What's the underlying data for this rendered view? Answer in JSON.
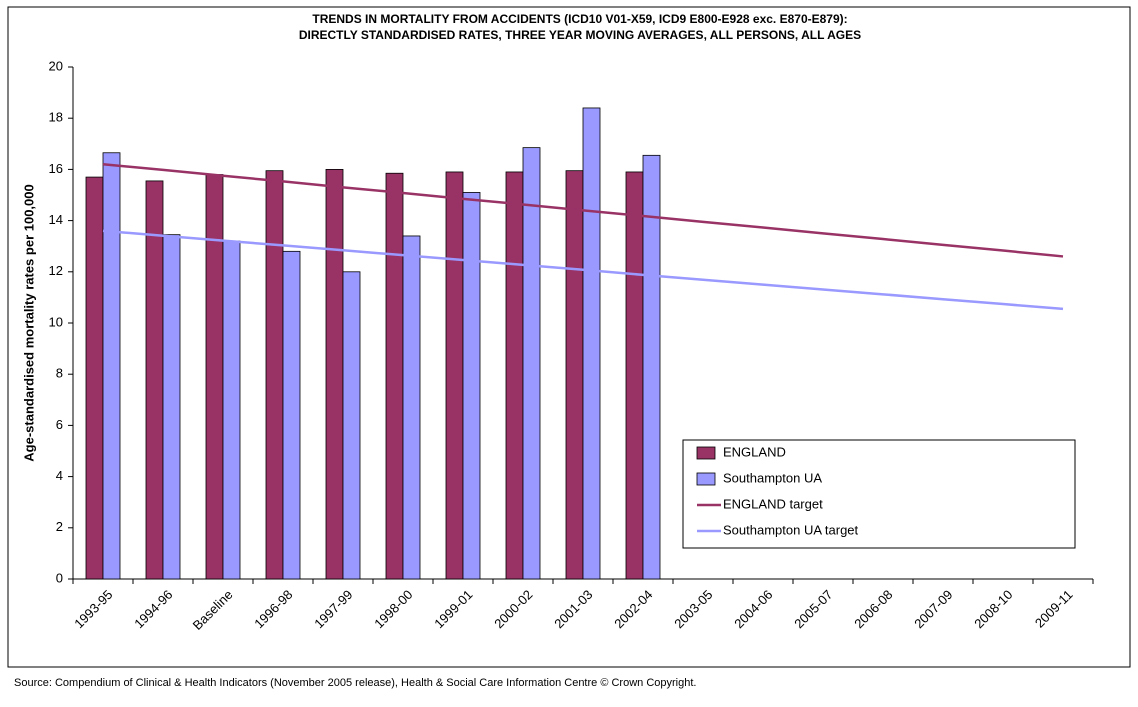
{
  "chart_data": {
    "type": "bar",
    "title": [
      "TRENDS IN MORTALITY FROM ACCIDENTS (ICD10 V01-X59, ICD9 E800-E928 exc. E870-E879):",
      "DIRECTLY STANDARDISED RATES, THREE YEAR MOVING AVERAGES, ALL PERSONS, ALL AGES"
    ],
    "y_label": "Age-standardised mortality rates per 100,000",
    "source": "Source: Compendium of Clinical & Health Indicators (November 2005 release), Health & Social Care Information Centre © Crown Copyright.",
    "categories": [
      "1993-95",
      "1994-96",
      "Baseline",
      "1996-98",
      "1997-99",
      "1998-00",
      "1999-01",
      "2000-02",
      "2001-03",
      "2002-04",
      "2003-05",
      "2004-06",
      "2005-07",
      "2006-08",
      "2007-09",
      "2008-10",
      "2009-11"
    ],
    "series": [
      {
        "name": "ENGLAND",
        "type": "bar",
        "color": "#993366",
        "values": [
          15.7,
          15.55,
          15.8,
          15.95,
          16.0,
          15.85,
          15.9,
          15.9,
          15.95,
          15.9,
          null,
          null,
          null,
          null,
          null,
          null,
          null
        ]
      },
      {
        "name": "Southampton UA",
        "type": "bar",
        "color": "#9999ff",
        "values": [
          16.65,
          13.45,
          13.2,
          12.8,
          12.0,
          13.4,
          15.1,
          16.85,
          18.4,
          16.55,
          null,
          null,
          null,
          null,
          null,
          null,
          null
        ]
      },
      {
        "name": "ENGLAND target",
        "type": "line",
        "color": "#993366",
        "values": [
          16.2,
          15.98,
          15.75,
          15.53,
          15.3,
          15.08,
          14.85,
          14.63,
          14.4,
          14.18,
          13.95,
          13.73,
          13.5,
          13.28,
          13.05,
          12.83,
          12.6
        ]
      },
      {
        "name": "Southampton UA target",
        "type": "line",
        "color": "#9999ff",
        "values": [
          13.6,
          13.41,
          13.22,
          13.03,
          12.84,
          12.65,
          12.46,
          12.27,
          12.08,
          11.88,
          11.69,
          11.5,
          11.31,
          11.12,
          10.93,
          10.74,
          10.55
        ]
      }
    ],
    "ylim": [
      0,
      20
    ],
    "yticks": [
      0,
      2,
      4,
      6,
      8,
      10,
      12,
      14,
      16,
      18,
      20
    ],
    "grid": false,
    "legend": "lower-right"
  }
}
